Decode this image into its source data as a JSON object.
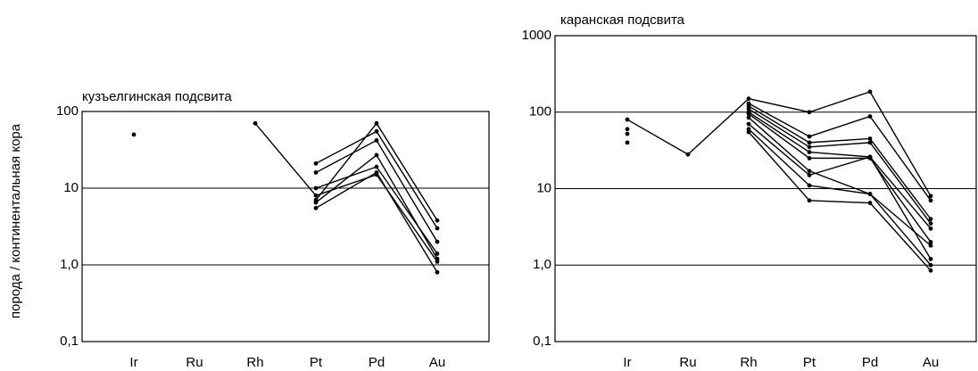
{
  "chart_data": [
    {
      "type": "line",
      "title": "кузъелгинская подсвита",
      "y_label": "порода / континентальная кора",
      "categories": [
        "Ir",
        "Ru",
        "Rh",
        "Pt",
        "Pd",
        "Au"
      ],
      "log_scale": true,
      "grid": true,
      "color": "#000000",
      "ylim": [
        0.1,
        100
      ],
      "yticks": [
        {
          "value": 0.1,
          "label": "0,1"
        },
        {
          "value": 1,
          "label": "1,0"
        },
        10,
        100
      ],
      "series": [
        {
          "values": [
            50,
            null,
            null,
            null,
            null,
            null
          ]
        },
        {
          "values": [
            null,
            null,
            70,
            8,
            15,
            1.1
          ]
        },
        {
          "values": [
            null,
            null,
            null,
            21,
            55,
            3.0
          ]
        },
        {
          "values": [
            null,
            null,
            null,
            16,
            42,
            2.0
          ]
        },
        {
          "values": [
            null,
            null,
            null,
            7,
            70,
            3.8
          ]
        },
        {
          "values": [
            null,
            null,
            null,
            10,
            19,
            1.4
          ]
        },
        {
          "values": [
            null,
            null,
            null,
            6.5,
            27,
            1.2
          ]
        },
        {
          "values": [
            null,
            null,
            null,
            5.5,
            16,
            0.8
          ]
        }
      ]
    },
    {
      "type": "line",
      "title": "каранская подсвита",
      "categories": [
        "Ir",
        "Ru",
        "Rh",
        "Pt",
        "Pd",
        "Au"
      ],
      "log_scale": true,
      "grid": true,
      "color": "#000000",
      "ylim": [
        0.1,
        1000
      ],
      "yticks": [
        {
          "value": 0.1,
          "label": "0,1"
        },
        {
          "value": 1,
          "label": "1,0"
        },
        10,
        100,
        1000
      ],
      "series": [
        {
          "values": [
            80,
            28,
            150,
            100,
            185,
            8
          ]
        },
        {
          "values": [
            60,
            null,
            null,
            null,
            null,
            null
          ]
        },
        {
          "values": [
            52,
            null,
            null,
            null,
            null,
            null
          ]
        },
        {
          "values": [
            40,
            null,
            null,
            null,
            null,
            null
          ]
        },
        {
          "values": [
            null,
            null,
            130,
            48,
            88,
            7
          ]
        },
        {
          "values": [
            null,
            null,
            120,
            40,
            45,
            4
          ]
        },
        {
          "values": [
            null,
            null,
            110,
            35,
            40,
            3.5
          ]
        },
        {
          "values": [
            null,
            null,
            100,
            30,
            26,
            3
          ]
        },
        {
          "values": [
            null,
            null,
            95,
            25,
            25,
            2
          ]
        },
        {
          "values": [
            null,
            null,
            85,
            17,
            8.5,
            1.8
          ]
        },
        {
          "values": [
            null,
            null,
            70,
            15,
            26,
            1.2
          ]
        },
        {
          "values": [
            null,
            null,
            60,
            11,
            8.5,
            1.0
          ]
        },
        {
          "values": [
            null,
            null,
            55,
            7,
            6.5,
            0.85
          ]
        }
      ]
    }
  ]
}
